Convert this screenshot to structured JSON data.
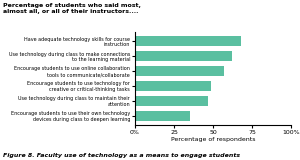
{
  "chart_data": {
    "type": "bar",
    "orientation": "horizontal",
    "title": "Percentage of students who said most,\nalmost all, or all of their instructors....",
    "annotations": [
      "Figure 8. Faculty use of technology as a means to engage students"
    ],
    "categories": [
      "Have adequate technology skills for course\ninstruction",
      "Use technology during class to make connections\nto the learning material",
      "Encourage students to use online collaboration\ntools to communicate/collaborate",
      "Encourage students to use technology for\ncreative or critical-thinking tasks",
      "Use technology during class to maintain their\nattention",
      "Encourage students to use their own technology\ndevices during class to deepen learning"
    ],
    "values": [
      68,
      62,
      57,
      49,
      47,
      35
    ],
    "color": "#5abfa0",
    "xlabel": "Percentage of respondents",
    "xlim": [
      0,
      100
    ],
    "xticks": [
      {
        "value": 0,
        "label": "0%"
      },
      25,
      50,
      75,
      {
        "value": 100,
        "label": "100%"
      }
    ],
    "grid": false
  }
}
